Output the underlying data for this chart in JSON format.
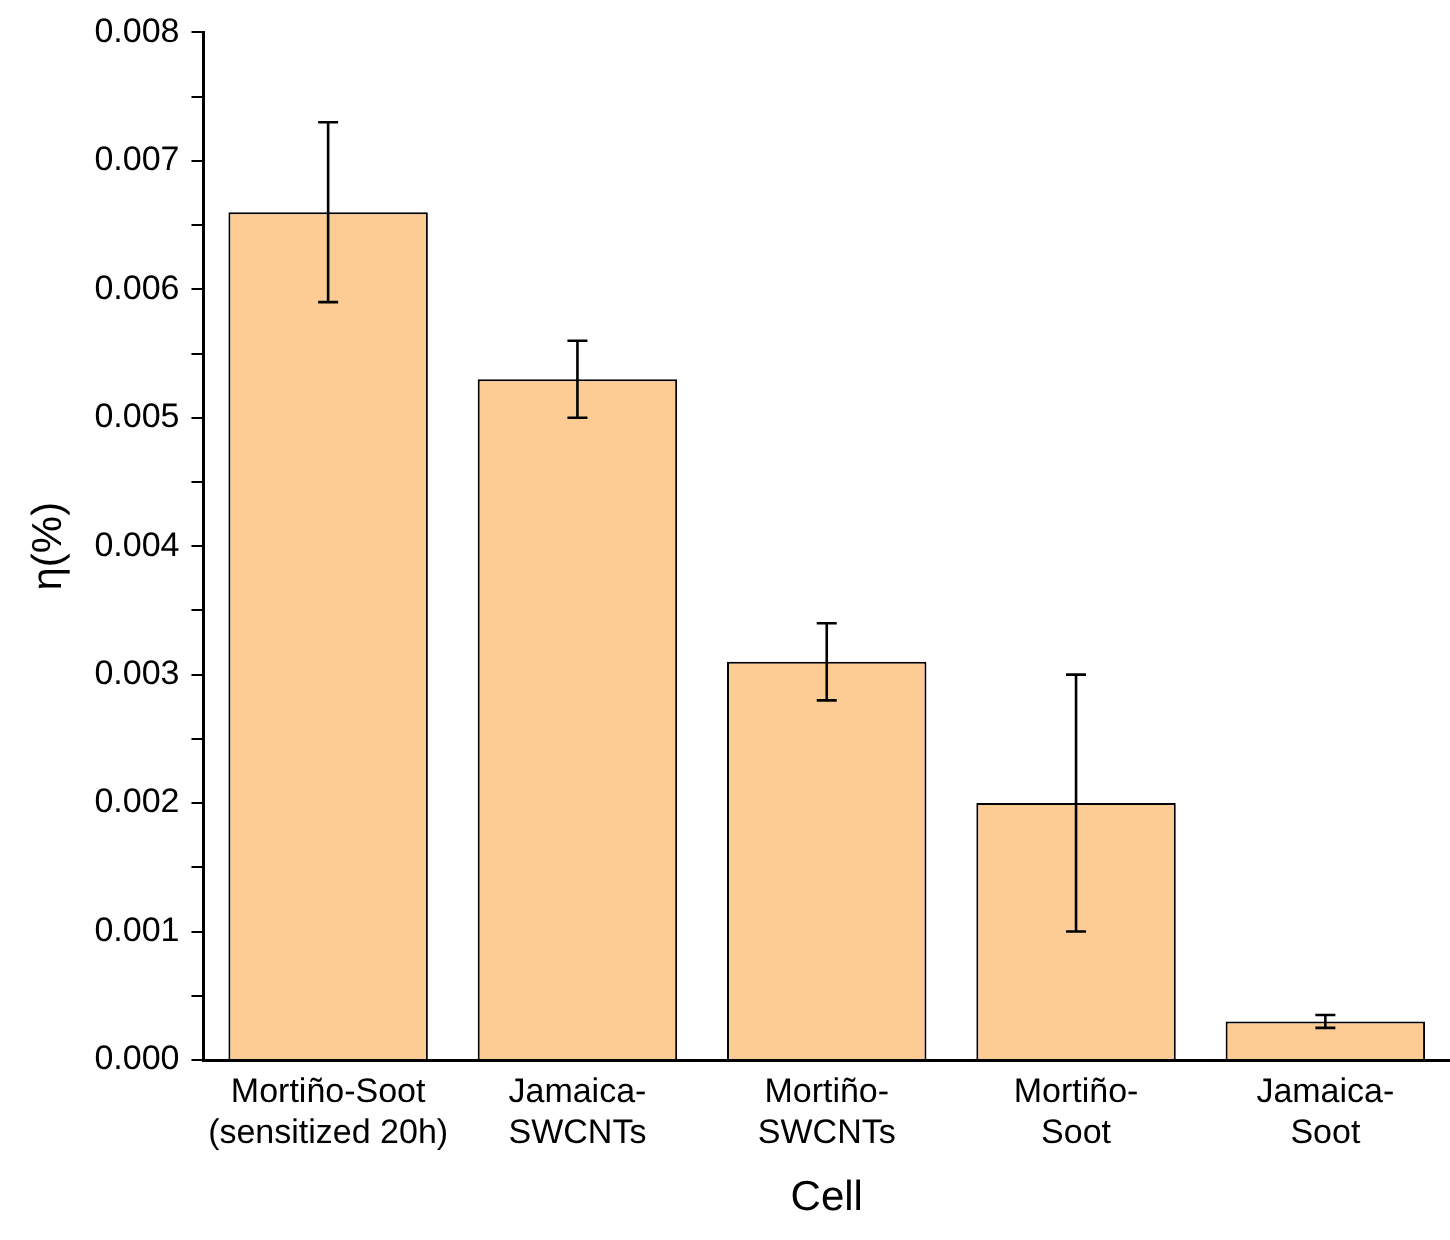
{
  "chart_data": {
    "type": "bar",
    "xlabel": "Cell",
    "ylabel": "η(%)",
    "categories": [
      "Mortiño-Soot\n(sensitized 20h)",
      "Jamaica-\nSWCNTs",
      "Mortiño-\nSWCNTs",
      "Mortiño-\nSoot",
      "Jamaica-\nSoot"
    ],
    "values": [
      0.0066,
      0.0053,
      0.0031,
      0.002,
      0.0003
    ],
    "errors": [
      0.0007,
      0.0003,
      0.0003,
      0.001,
      5e-05
    ],
    "color": "#fdcc94",
    "ylim": [
      0,
      0.008
    ],
    "yticks": [
      {
        "value": 0,
        "label": "0.000"
      },
      {
        "value": 0.0005,
        "label": null
      },
      {
        "value": 0.001,
        "label": "0.001"
      },
      {
        "value": 0.0015,
        "label": null
      },
      {
        "value": 0.002,
        "label": "0.002"
      },
      {
        "value": 0.0025,
        "label": null
      },
      {
        "value": 0.003,
        "label": "0.003"
      },
      {
        "value": 0.0035,
        "label": null
      },
      {
        "value": 0.004,
        "label": "0.004"
      },
      {
        "value": 0.0045,
        "label": null
      },
      {
        "value": 0.005,
        "label": "0.005"
      },
      {
        "value": 0.0055,
        "label": null
      },
      {
        "value": 0.006,
        "label": "0.006"
      },
      {
        "value": 0.0065,
        "label": null
      },
      {
        "value": 0.007,
        "label": "0.007"
      },
      {
        "value": 0.0075,
        "label": null
      },
      {
        "value": 0.008,
        "label": "0.008"
      }
    ],
    "grid": false,
    "legend": false
  }
}
